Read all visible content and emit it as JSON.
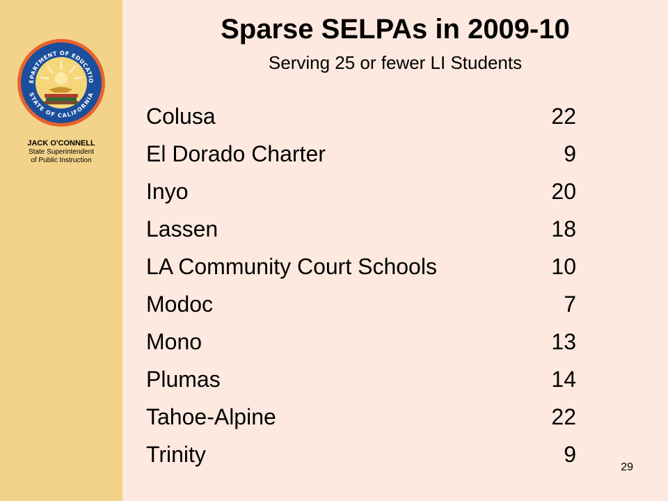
{
  "sidebar": {
    "seal": {
      "top_text": "DEPARTMENT OF EDUCATION",
      "bottom_text": "STATE OF CALIFORNIA"
    },
    "superintendent_name": "JACK O'CONNELL",
    "role_line1": "State Superintendent",
    "role_line2": "of Public Instruction"
  },
  "slide": {
    "title": "Sparse SELPAs in 2009-10",
    "subtitle": "Serving 25 or fewer LI Students",
    "rows": [
      {
        "name": "Colusa",
        "count": "22"
      },
      {
        "name": "El Dorado Charter",
        "count": "9"
      },
      {
        "name": "Inyo",
        "count": "20"
      },
      {
        "name": "Lassen",
        "count": "18"
      },
      {
        "name": "LA Community Court Schools",
        "count": "10"
      },
      {
        "name": "Modoc",
        "count": "7"
      },
      {
        "name": "Mono",
        "count": "13"
      },
      {
        "name": "Plumas",
        "count": "14"
      },
      {
        "name": "Tahoe-Alpine",
        "count": "22"
      },
      {
        "name": "Trinity",
        "count": "9"
      }
    ],
    "page_number": "29"
  },
  "colors": {
    "background": "#fde9df",
    "sidebar": "#f3d38a",
    "seal_ring": "#e8632b",
    "seal_band": "#1b4f9c"
  }
}
